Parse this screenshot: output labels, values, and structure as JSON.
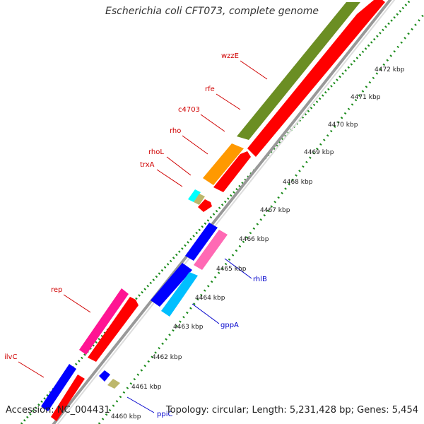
{
  "title": "Escherichia coli CFT073, complete genome",
  "footer": {
    "accession": "Accession: NC_004431",
    "summary": "Topology: circular; Length: 5,231,428 bp; Genes: 5,454"
  },
  "colors": {
    "backbone": "#b0b0b0",
    "tick": "#1a8a1a",
    "red_label": "#d00000",
    "blue_label": "#0000cc",
    "red": "#ff0000",
    "green": "#6b8e23",
    "orange": "#ff9900",
    "blue": "#0000ff",
    "cyan": "#00bfff",
    "magenta": "#ff1493",
    "khaki": "#bdb76b",
    "aqua": "#00ffff"
  },
  "kbp_ticks": [
    "4460 kbp",
    "4461 kbp",
    "4462 kbp",
    "4463 kbp",
    "4464 kbp",
    "4465 kbp",
    "4466 kbp",
    "4467 kbp",
    "4468 kbp",
    "4469 kbp",
    "4470 kbp",
    "4471 kbp",
    "4472 kbp"
  ],
  "gene_labels_left": [
    "wzzE",
    "rfe",
    "c4703",
    "rho",
    "rhoL",
    "trxA",
    "rep",
    "ilvC"
  ],
  "gene_labels_right": [
    "rhlB",
    "gppA",
    "ppiC"
  ]
}
